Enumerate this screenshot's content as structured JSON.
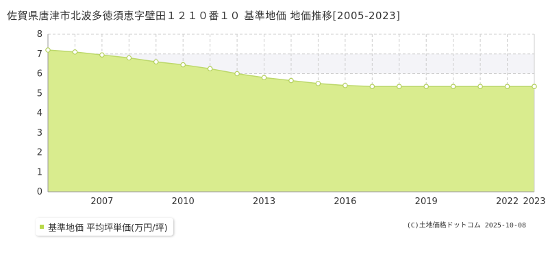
{
  "title": "佐賀県唐津市北波多徳須恵字壁田１２１０番１０ 基準地価 地価推移[2005-2023]",
  "legend_label": "基準地価 平均坪単価(万円/坪)",
  "copyright": "(C)土地価格ドットコム 2025-10-08",
  "colors": {
    "fill": "#d9ec8e",
    "line": "#bcd86a",
    "point_fill": "#ffffff",
    "point_stroke": "#b3cf5c",
    "legend_marker": "#b8d84a",
    "grid": "#cccccc",
    "highlight_band": "#f4f4f8"
  },
  "chart_data": {
    "type": "area",
    "x": [
      2005,
      2006,
      2007,
      2008,
      2009,
      2010,
      2011,
      2012,
      2013,
      2014,
      2015,
      2016,
      2017,
      2018,
      2019,
      2020,
      2021,
      2022,
      2023
    ],
    "series": [
      {
        "name": "基準地価 平均坪単価(万円/坪)",
        "values": [
          7.2,
          7.1,
          6.95,
          6.8,
          6.6,
          6.45,
          6.25,
          6.0,
          5.8,
          5.65,
          5.5,
          5.4,
          5.35,
          5.35,
          5.35,
          5.35,
          5.35,
          5.35,
          5.35
        ]
      }
    ],
    "x_ticks": [
      "2007",
      "2010",
      "2013",
      "2016",
      "2019",
      "2022",
      "2023"
    ],
    "y_ticks": [
      "0",
      "1",
      "2",
      "3",
      "4",
      "5",
      "6",
      "7",
      "8"
    ],
    "xlim": [
      2005,
      2023
    ],
    "ylim": [
      0,
      8
    ],
    "highlight_band": [
      6,
      7
    ],
    "grid": true,
    "legend_position": "bottom-left"
  }
}
